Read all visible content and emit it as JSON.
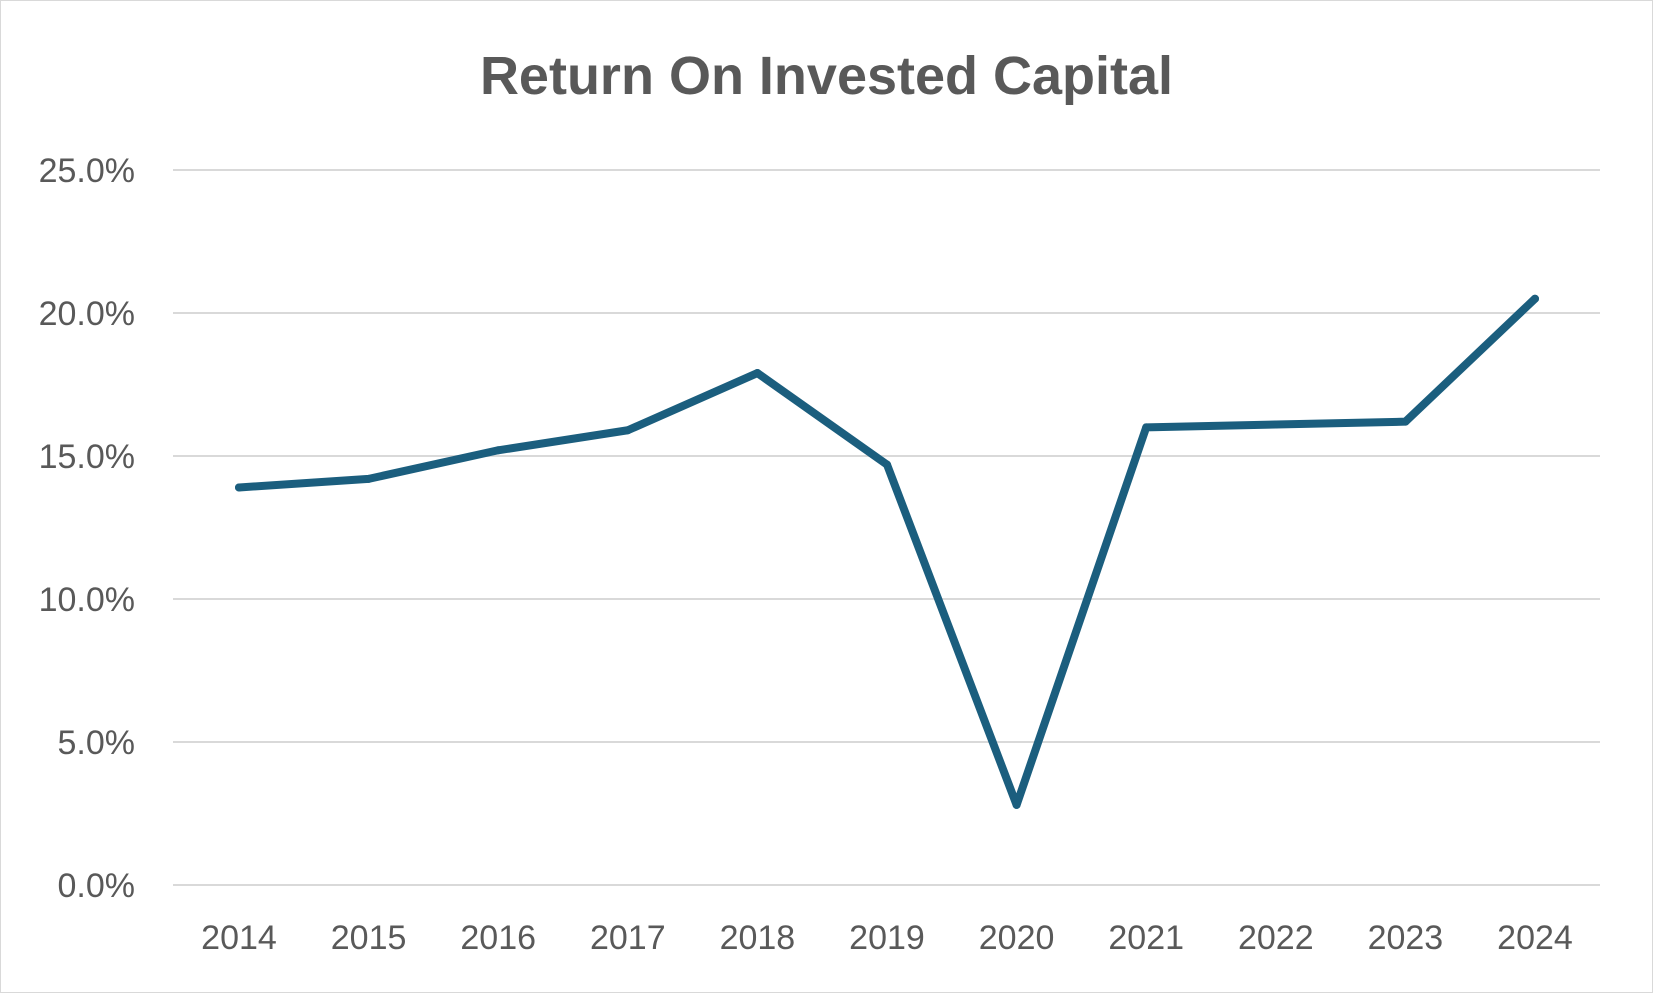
{
  "chart_data": {
    "type": "line",
    "title": "Return On Invested Capital",
    "xlabel": "",
    "ylabel": "",
    "categories": [
      "2014",
      "2015",
      "2016",
      "2017",
      "2018",
      "2019",
      "2020",
      "2021",
      "2022",
      "2023",
      "2024"
    ],
    "series": [
      {
        "values": [
          13.9,
          14.2,
          15.2,
          15.9,
          17.9,
          14.7,
          2.8,
          16.0,
          16.1,
          16.2,
          20.5
        ]
      }
    ],
    "y_ticks": [
      "0.0%",
      "5.0%",
      "10.0%",
      "15.0%",
      "20.0%",
      "25.0%"
    ],
    "ylim": [
      0,
      25
    ],
    "grid": true,
    "legend": "none",
    "colors": {
      "line": "#1b5e7e",
      "grid": "#d9d9d9",
      "text": "#595959"
    }
  }
}
